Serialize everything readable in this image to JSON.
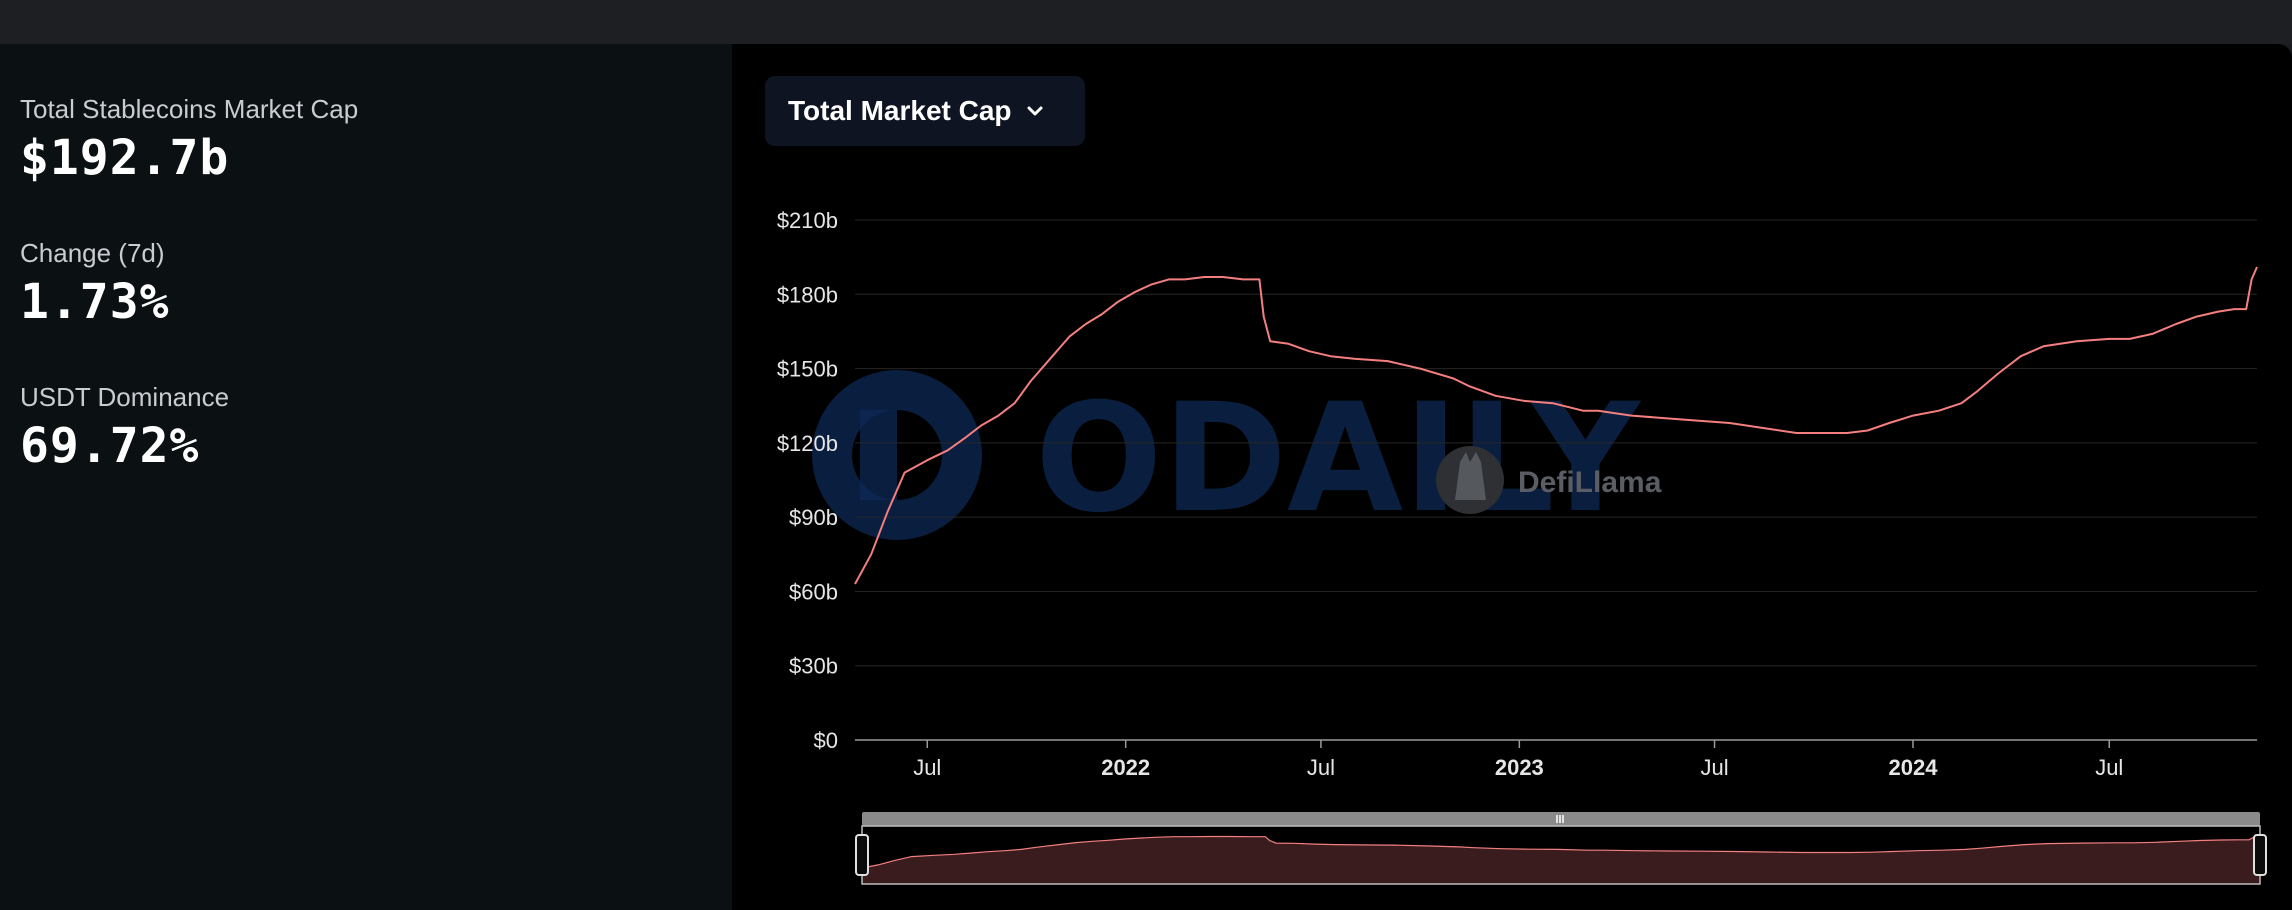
{
  "stats": [
    {
      "label": "Total Stablecoins Market Cap",
      "value": "$192.7b"
    },
    {
      "label": "Change (7d)",
      "value": "1.73%"
    },
    {
      "label": "USDT Dominance",
      "value": "69.72%"
    }
  ],
  "dropdown": {
    "label": "Total Market Cap"
  },
  "watermarks": {
    "odaily": "ODAILY",
    "defillama": "DefiLlama"
  },
  "colors": {
    "line": "#f47f7f",
    "brush_fill": "#3a1c1e",
    "panel": "#0b1012",
    "background": "#000000"
  },
  "chart_data": {
    "type": "line",
    "title": "",
    "xlabel": "",
    "ylabel": "",
    "ylim": [
      0,
      210
    ],
    "y_unit": "$b",
    "y_ticks": [
      "$210b",
      "$180b",
      "$150b",
      "$120b",
      "$90b",
      "$60b",
      "$30b",
      "$0"
    ],
    "y_tick_values": [
      210,
      180,
      150,
      120,
      90,
      60,
      30,
      0
    ],
    "x_range": [
      "2021-04-25",
      "2024-11-15"
    ],
    "x_ticks": [
      {
        "label": "Jul",
        "date": "2021-07-01",
        "bold": false
      },
      {
        "label": "2022",
        "date": "2022-01-01",
        "bold": true
      },
      {
        "label": "Jul",
        "date": "2022-07-01",
        "bold": false
      },
      {
        "label": "2023",
        "date": "2023-01-01",
        "bold": true
      },
      {
        "label": "Jul",
        "date": "2023-07-01",
        "bold": false
      },
      {
        "label": "2024",
        "date": "2024-01-01",
        "bold": true
      },
      {
        "label": "Jul",
        "date": "2024-07-01",
        "bold": false
      }
    ],
    "grid": true,
    "legend": "none",
    "series": [
      {
        "x": [
          "2021-04-25",
          "2021-05-10",
          "2021-05-25",
          "2021-06-10",
          "2021-07-01",
          "2021-07-20",
          "2021-08-05",
          "2021-08-20",
          "2021-09-05",
          "2021-09-20",
          "2021-10-05",
          "2021-10-25",
          "2021-11-10",
          "2021-11-25",
          "2021-12-10",
          "2021-12-25",
          "2022-01-10",
          "2022-01-25",
          "2022-02-10",
          "2022-02-25",
          "2022-03-15",
          "2022-04-01",
          "2022-04-20",
          "2022-05-05",
          "2022-05-09",
          "2022-05-15",
          "2022-06-01",
          "2022-06-20",
          "2022-07-10",
          "2022-08-01",
          "2022-09-01",
          "2022-10-01",
          "2022-11-01",
          "2022-11-15",
          "2022-12-10",
          "2023-01-05",
          "2023-02-01",
          "2023-03-01",
          "2023-03-15",
          "2023-04-15",
          "2023-05-15",
          "2023-06-15",
          "2023-07-15",
          "2023-08-15",
          "2023-09-15",
          "2023-10-15",
          "2023-11-01",
          "2023-11-20",
          "2023-12-10",
          "2024-01-01",
          "2024-01-25",
          "2024-02-15",
          "2024-03-01",
          "2024-03-20",
          "2024-04-10",
          "2024-05-01",
          "2024-06-01",
          "2024-07-01",
          "2024-07-20",
          "2024-08-10",
          "2024-09-01",
          "2024-09-20",
          "2024-10-10",
          "2024-10-25",
          "2024-11-05",
          "2024-11-10",
          "2024-11-15"
        ],
        "y": [
          63,
          75,
          92,
          108,
          113,
          117,
          122,
          127,
          131,
          136,
          145,
          155,
          163,
          168,
          172,
          177,
          181,
          184,
          186,
          186,
          187,
          187,
          186,
          186,
          171,
          161,
          160,
          157,
          155,
          154,
          153,
          150,
          146,
          143,
          139,
          137,
          136,
          133,
          133,
          131,
          130,
          129,
          128,
          126,
          124,
          124,
          124,
          125,
          128,
          131,
          133,
          136,
          141,
          148,
          155,
          159,
          161,
          162,
          162,
          164,
          168,
          171,
          173,
          174,
          174,
          186,
          191
        ]
      }
    ]
  }
}
